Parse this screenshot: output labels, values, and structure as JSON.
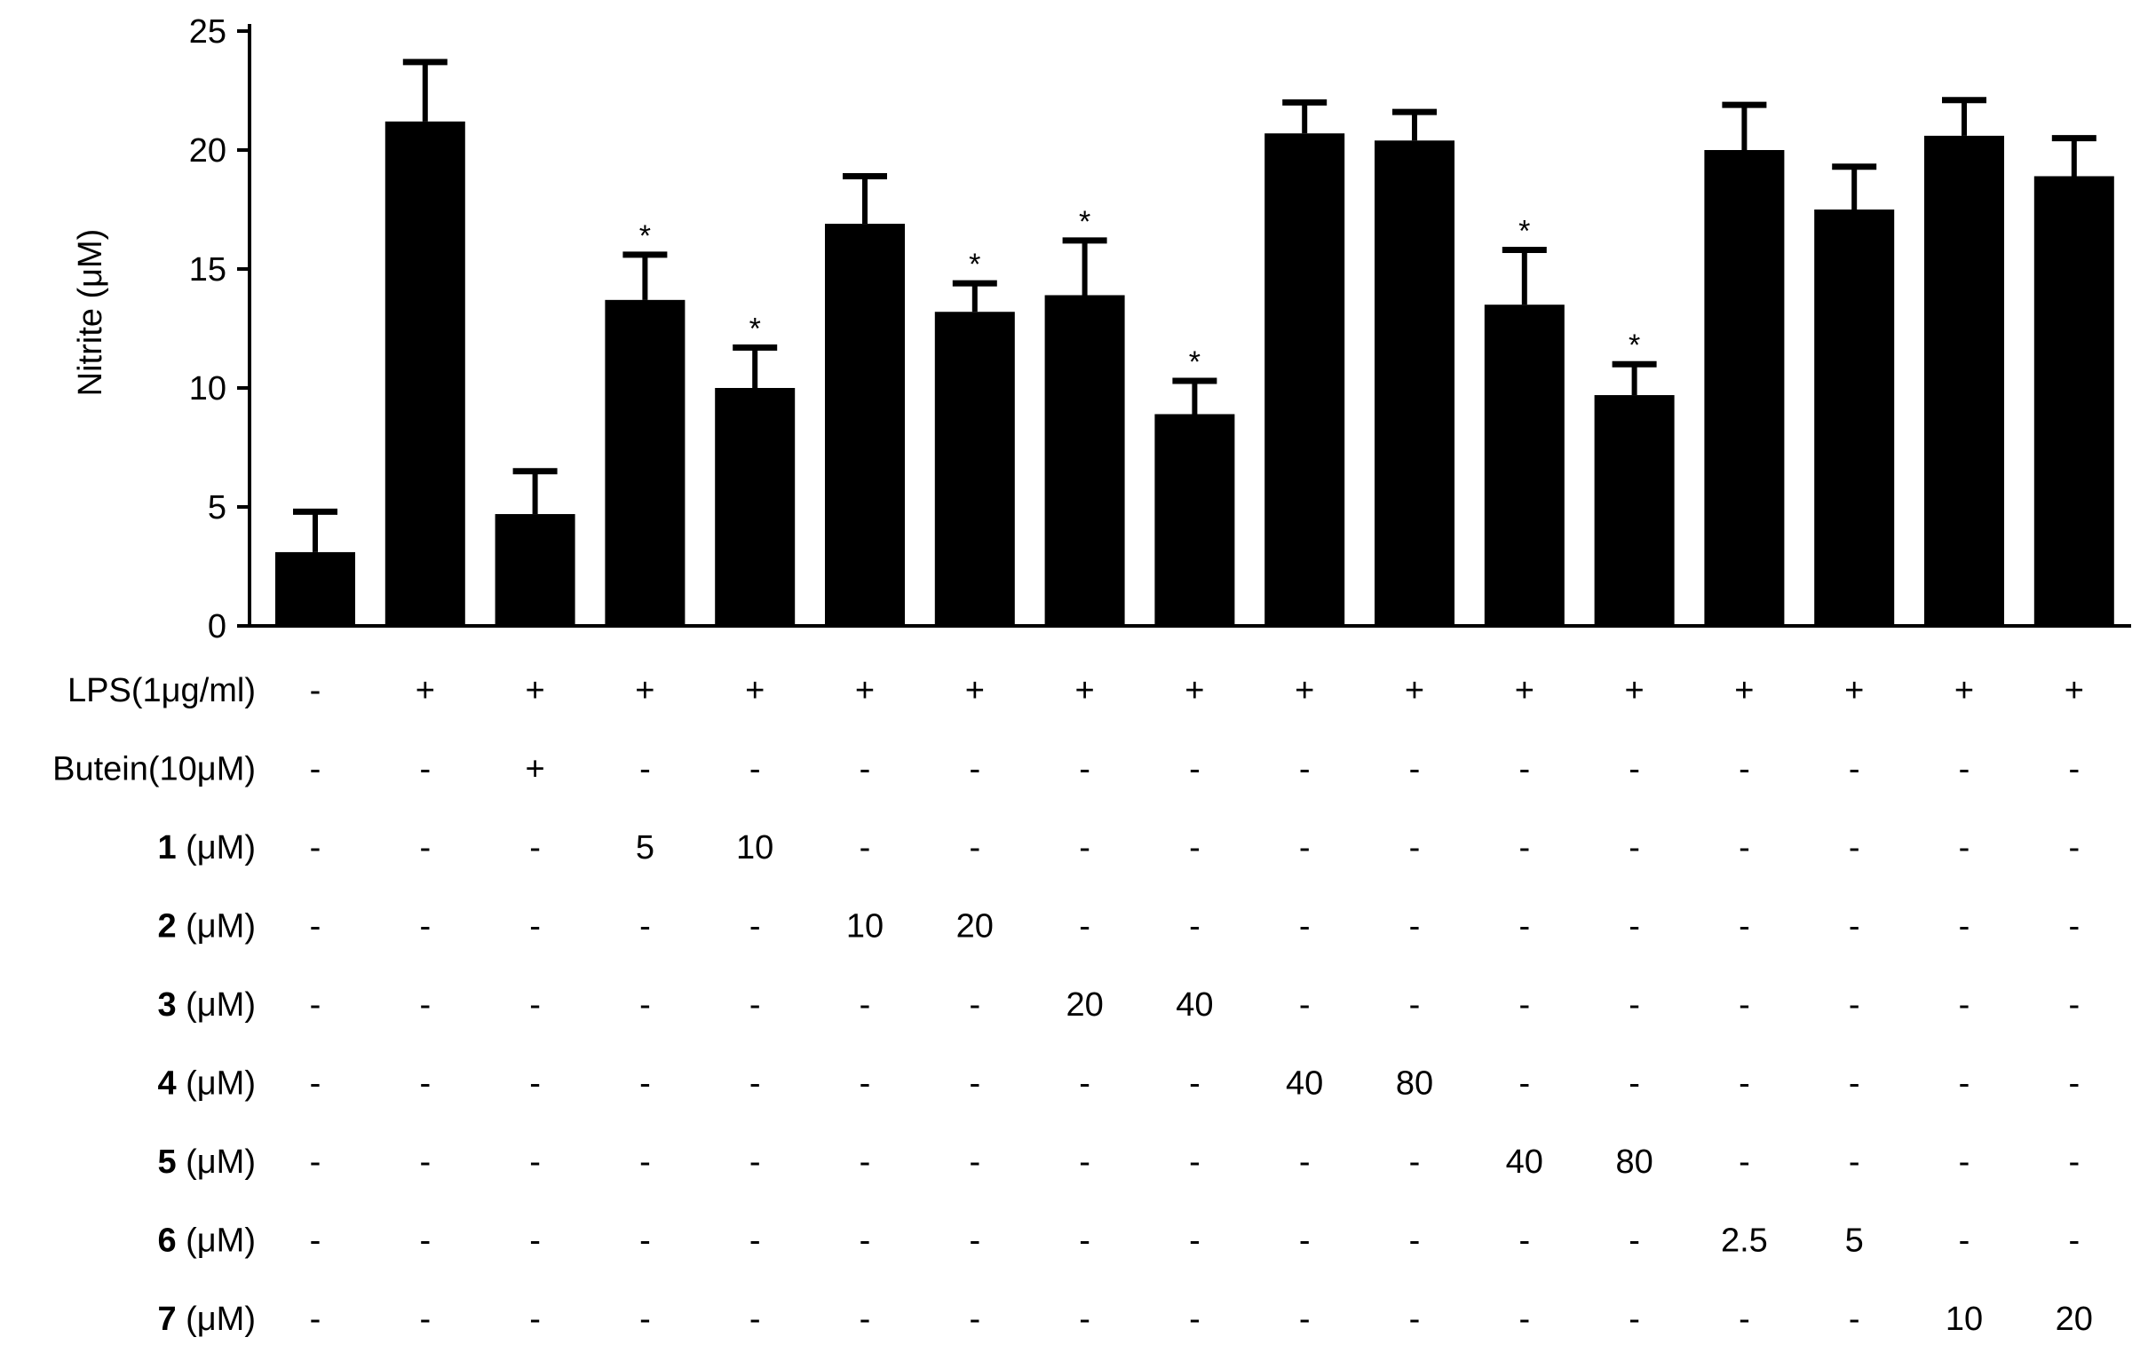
{
  "chart_data": {
    "type": "bar",
    "ylabel": "Nitrite (μM)",
    "ylim": [
      0,
      25
    ],
    "yticks": [
      0,
      5,
      10,
      15,
      20,
      25
    ],
    "values": [
      3.1,
      21.2,
      4.7,
      13.7,
      10.0,
      16.9,
      13.2,
      13.9,
      8.9,
      20.7,
      20.4,
      13.5,
      9.7,
      20.0,
      17.5,
      20.6,
      18.9
    ],
    "errors": [
      1.7,
      2.5,
      1.8,
      1.9,
      1.7,
      2.0,
      1.2,
      2.3,
      1.4,
      1.3,
      1.2,
      2.3,
      1.3,
      1.9,
      1.8,
      1.5,
      1.6
    ],
    "significance": [
      "",
      "",
      "",
      "*",
      "*",
      "",
      "*",
      "*",
      "*",
      "",
      "",
      "*",
      "*",
      "",
      "",
      "",
      ""
    ],
    "bar_color": "#000000",
    "grid": false,
    "condition_rows": [
      {
        "label": "LPS(1μg/ml)",
        "bold_prefix": "",
        "cells": [
          "-",
          "+",
          "+",
          "+",
          "+",
          "+",
          "+",
          "+",
          "+",
          "+",
          "+",
          "+",
          "+",
          "+",
          "+",
          "+",
          "+"
        ]
      },
      {
        "label": "Butein(10μM)",
        "bold_prefix": "",
        "cells": [
          "-",
          "-",
          "+",
          "-",
          "-",
          "-",
          "-",
          "-",
          "-",
          "-",
          "-",
          "-",
          "-",
          "-",
          "-",
          "-",
          "-"
        ]
      },
      {
        "label": " (μM)",
        "bold_prefix": "1",
        "cells": [
          "-",
          "-",
          "-",
          "5",
          "10",
          "-",
          "-",
          "-",
          "-",
          "-",
          "-",
          "-",
          "-",
          "-",
          "-",
          "-",
          "-"
        ]
      },
      {
        "label": " (μM)",
        "bold_prefix": "2",
        "cells": [
          "-",
          "-",
          "-",
          "-",
          "-",
          "10",
          "20",
          "-",
          "-",
          "-",
          "-",
          "-",
          "-",
          "-",
          "-",
          "-",
          "-"
        ]
      },
      {
        "label": " (μM)",
        "bold_prefix": "3",
        "cells": [
          "-",
          "-",
          "-",
          "-",
          "-",
          "-",
          "-",
          "20",
          "40",
          "-",
          "-",
          "-",
          "-",
          "-",
          "-",
          "-",
          "-"
        ]
      },
      {
        "label": " (μM)",
        "bold_prefix": "4",
        "cells": [
          "-",
          "-",
          "-",
          "-",
          "-",
          "-",
          "-",
          "-",
          "-",
          "40",
          "80",
          "-",
          "-",
          "-",
          "-",
          "-",
          "-"
        ]
      },
      {
        "label": " (μM)",
        "bold_prefix": "5",
        "cells": [
          "-",
          "-",
          "-",
          "-",
          "-",
          "-",
          "-",
          "-",
          "-",
          "-",
          "-",
          "40",
          "80",
          "-",
          "-",
          "-",
          "-"
        ]
      },
      {
        "label": " (μM)",
        "bold_prefix": "6",
        "cells": [
          "-",
          "-",
          "-",
          "-",
          "-",
          "-",
          "-",
          "-",
          "-",
          "-",
          "-",
          "-",
          "-",
          "2.5",
          "5",
          "-",
          "-"
        ]
      },
      {
        "label": " (μM)",
        "bold_prefix": "7",
        "cells": [
          "-",
          "-",
          "-",
          "-",
          "-",
          "-",
          "-",
          "-",
          "-",
          "-",
          "-",
          "-",
          "-",
          "-",
          "-",
          "10",
          "20"
        ]
      }
    ]
  }
}
